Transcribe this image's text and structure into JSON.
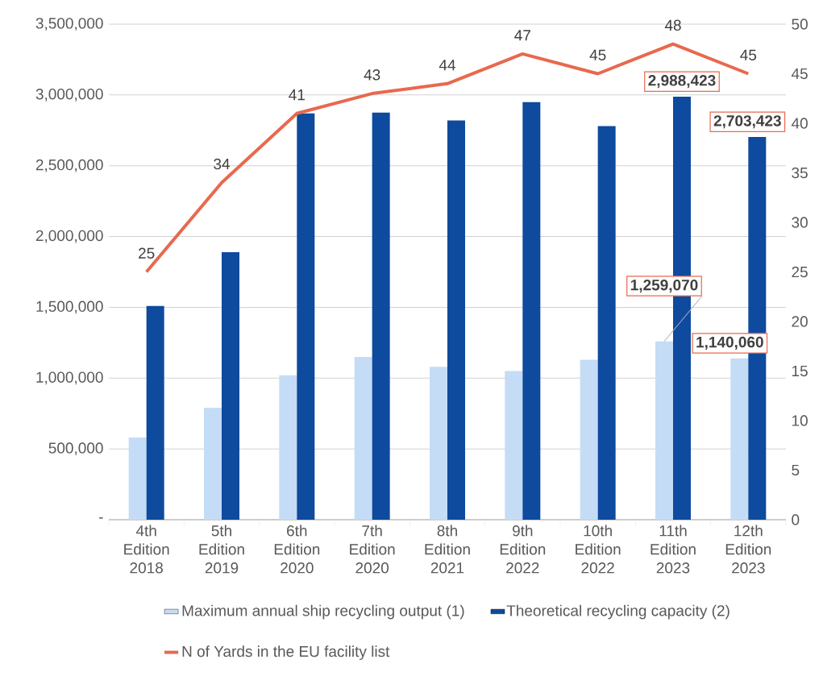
{
  "chart_data": {
    "type": "bar",
    "categories": [
      "4th Edition 2018",
      "5th Edition 2019",
      "6th Edition 2020",
      "7th Edition 2020",
      "8th Edition 2021",
      "9th Edition 2022",
      "10th Edition 2022",
      "11th Edition 2023",
      "12th Edition 2023"
    ],
    "series": [
      {
        "name": "Maximum annual ship recycling output (1)",
        "color": "#c5dcf6",
        "values": [
          580000,
          790000,
          1020000,
          1150000,
          1080000,
          1050000,
          1130000,
          1259070,
          1140060
        ],
        "value_labels": [
          null,
          null,
          null,
          null,
          null,
          null,
          null,
          "1,259,070",
          "1,140,060"
        ]
      },
      {
        "name": "Theoretical recycling capacity (2)",
        "color": "#0e4a9e",
        "values": [
          1510000,
          1890000,
          2870000,
          2875000,
          2820000,
          2950000,
          2780000,
          2988423,
          2703423
        ],
        "value_labels": [
          null,
          null,
          null,
          null,
          null,
          null,
          null,
          "2,988,423",
          "2,703,423"
        ]
      },
      {
        "name": "N of Yards in the EU facility list",
        "type": "line",
        "axis": "y2",
        "color": "#e8694e",
        "values": [
          25,
          34,
          41,
          43,
          44,
          47,
          45,
          48,
          45
        ],
        "value_labels": [
          "25",
          "34",
          "41",
          "43",
          "44",
          "47",
          "45",
          "48",
          "45"
        ]
      }
    ],
    "ylim": [
      0,
      3500000
    ],
    "yticks": [
      {
        "value": 0,
        "label": "-"
      },
      {
        "value": 500000,
        "label": "500,000"
      },
      {
        "value": 1000000,
        "label": "1,000,000"
      },
      {
        "value": 1500000,
        "label": "1,500,000"
      },
      {
        "value": 2000000,
        "label": "2,000,000"
      },
      {
        "value": 2500000,
        "label": "2,500,000"
      },
      {
        "value": 3000000,
        "label": "3,000,000"
      },
      {
        "value": 3500000,
        "label": "3,500,000"
      }
    ],
    "y2lim": [
      0,
      50
    ],
    "y2ticks": [
      0,
      5,
      10,
      15,
      20,
      25,
      30,
      35,
      40,
      45,
      50
    ],
    "grid": "y",
    "legend": "bottom",
    "marker": "none"
  }
}
